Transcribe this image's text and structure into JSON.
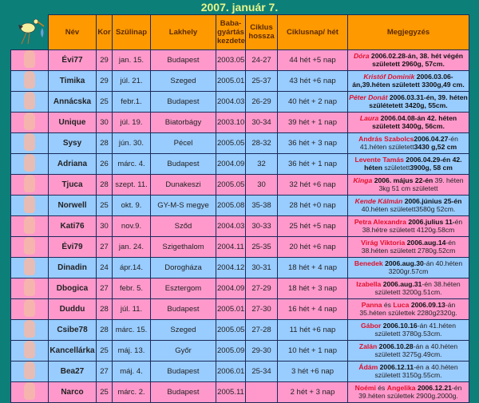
{
  "title": "2007. január 7.",
  "icons": {
    "corner": "stork-icon",
    "row": "baby-icon"
  },
  "colors": {
    "pink": "#ff99cc",
    "blue": "#99ccff",
    "header": "#ff9900",
    "background": "#0d7f79"
  },
  "headers": [
    "Név",
    "Kor",
    "Szülinap",
    "Lakhely",
    "Baba-gyártás kezdete",
    "Ciklus hossza",
    "Ciklusnap/ hét",
    "Megjegyzés"
  ],
  "rows": [
    {
      "color": "pink",
      "name": "Évi77",
      "age": "29",
      "birthday": "jan. 15.",
      "city": "Budapest",
      "start": "2003.05",
      "cycle": "24-27",
      "day": "44 hét +5 nap",
      "note": [
        {
          "t": "Dóra",
          "s": "nm it"
        },
        {
          "t": " 2006.02.28-án, 38. hét végén született 2960g, 57cm.",
          "s": "b"
        }
      ]
    },
    {
      "color": "blue",
      "name": "Timika",
      "age": "29",
      "birthday": "júl. 21.",
      "city": "Szeged",
      "start": "2005.01",
      "cycle": "25-37",
      "day": "43 hét +6 nap",
      "note": [
        {
          "t": "Kristóf Dominik",
          "s": "nm it"
        },
        {
          "t": " 2006.03.06-án,39.héten született 3300g,49 cm.",
          "s": "b"
        }
      ]
    },
    {
      "color": "blue",
      "name": "Annácska",
      "age": "25",
      "birthday": "febr.1.",
      "city": "Budapest",
      "start": "2004.03",
      "cycle": "26-29",
      "day": "40 hét + 2 nap",
      "note": [
        {
          "t": "Péter Donát",
          "s": "nm it"
        },
        {
          "t": " 2006.03.31-én, 39. héten szülétetett 3420g, 55cm.",
          "s": "b"
        }
      ]
    },
    {
      "color": "pink",
      "name": "Unique",
      "age": "30",
      "birthday": "júl. 19.",
      "city": "Biatorbágy",
      "start": "2003.10",
      "cycle": "30-34",
      "day": "39 hét + 1 nap",
      "note": [
        {
          "t": "Laura",
          "s": "nm it"
        },
        {
          "t": " 2006.04.08-án 42. héten született 3400g, 56cm.",
          "s": "b"
        }
      ]
    },
    {
      "color": "blue",
      "name": "Sysy",
      "age": "28",
      "birthday": "jún. 30.",
      "city": "Pécel",
      "start": "2005.05",
      "cycle": "28-32",
      "day": "36 hét + 3 nap",
      "note": [
        {
          "t": "András Szabolcs",
          "s": "nm"
        },
        {
          "t": "2006.04.27",
          "s": "b"
        },
        {
          "t": "-én 41.héten született",
          "s": ""
        },
        {
          "t": "3430 g,52 cm",
          "s": "b"
        }
      ]
    },
    {
      "color": "blue",
      "name": "Adriana",
      "age": "26",
      "birthday": "márc. 4.",
      "city": "Budapest",
      "start": "2004.09",
      "cycle": "32",
      "day": "36 hét + 1 nap",
      "note": [
        {
          "t": "Levente Tamás",
          "s": "nm"
        },
        {
          "t": " 2006.04.29-én 42. héten",
          "s": "b"
        },
        {
          "t": " született",
          "s": ""
        },
        {
          "t": "3900g, 58 cm",
          "s": "b"
        }
      ]
    },
    {
      "color": "pink",
      "name": "Tjuca",
      "age": "28",
      "birthday": "szept. 11.",
      "city": "Dunakeszi",
      "start": "2005.05",
      "cycle": "30",
      "day": "32 hét +6 nap",
      "note": [
        {
          "t": "Kinga",
          "s": "nm it"
        },
        {
          "t": " 2006. május 22-én",
          "s": "b"
        },
        {
          "t": " 39. héten 3kg 51 cm született",
          "s": ""
        }
      ]
    },
    {
      "color": "blue",
      "name": "Norwell",
      "age": "25",
      "birthday": "okt. 9.",
      "city": "GY-M-S megye",
      "start": "2005.08",
      "cycle": "35-38",
      "day": "28 hét +0 nap",
      "note": [
        {
          "t": "Kende Kálmán",
          "s": "nm it"
        },
        {
          "t": " 2006.június 25-én",
          "s": "b"
        },
        {
          "t": " 40.héten született3580g 52cm.",
          "s": ""
        }
      ]
    },
    {
      "color": "pink",
      "name": "Kati76",
      "age": "30",
      "birthday": "nov.9.",
      "city": "Sződ",
      "start": "2004.03",
      "cycle": "30-33",
      "day": "25 hét +5 nap",
      "note": [
        {
          "t": "Petra Alexandra",
          "s": "nm"
        },
        {
          "t": " 2006.julius 11-",
          "s": "b"
        },
        {
          "t": "én 38.hétre született 4120g.58cm",
          "s": ""
        }
      ]
    },
    {
      "color": "pink",
      "name": "Évi79",
      "age": "27",
      "birthday": "jan. 24.",
      "city": "Szigethalom",
      "start": "2004.11",
      "cycle": "25-35",
      "day": "20 hét +6 nap",
      "note": [
        {
          "t": "Virág Viktoria",
          "s": "nm"
        },
        {
          "t": " 2006.aug.14",
          "s": "b"
        },
        {
          "t": "-én 38.héten született 2780g.52cm",
          "s": ""
        }
      ]
    },
    {
      "color": "blue",
      "name": "Dinadin",
      "age": "24",
      "birthday": "ápr.14.",
      "city": "Dorogháza",
      "start": "2004.12",
      "cycle": "30-31",
      "day": "18 hét + 4 nap",
      "note": [
        {
          "t": "Benedek",
          "s": "nm"
        },
        {
          "t": " 2006.aug.30",
          "s": "b"
        },
        {
          "t": "-án 40.héten 3200gr.57cm",
          "s": ""
        }
      ]
    },
    {
      "color": "pink",
      "name": "Dbogica",
      "age": "27",
      "birthday": "febr. 5.",
      "city": "Esztergom",
      "start": "2004.09",
      "cycle": "27-29",
      "day": "18 hét + 3 nap",
      "note": [
        {
          "t": "Izabella",
          "s": "nm"
        },
        {
          "t": " 2006.aug.31",
          "s": "b"
        },
        {
          "t": "-én 38.héten született 3200g.51cm.",
          "s": ""
        }
      ]
    },
    {
      "color": "pink",
      "name": "Duddu",
      "age": "28",
      "birthday": "júl. 11.",
      "city": "Budapest",
      "start": "2005.01",
      "cycle": "27-30",
      "day": "16 hét + 4 nap",
      "note": [
        {
          "t": "Panna",
          "s": "nm"
        },
        {
          "t": " és ",
          "s": ""
        },
        {
          "t": "Luca",
          "s": "nm"
        },
        {
          "t": " 2006.09.13",
          "s": "b"
        },
        {
          "t": "-án 35.héten születtek 2280g2320g.",
          "s": ""
        }
      ]
    },
    {
      "color": "blue",
      "name": "Csibe78",
      "age": "28",
      "birthday": "márc. 15.",
      "city": "Szeged",
      "start": "2005.05",
      "cycle": "27-28",
      "day": "11 hét +6 nap",
      "note": [
        {
          "t": "Gábor",
          "s": "nm"
        },
        {
          "t": " 2006.10.16",
          "s": "b"
        },
        {
          "t": "-án 41.héten született 3780g.53cm.",
          "s": ""
        }
      ]
    },
    {
      "color": "blue",
      "name": "Kancellárka",
      "age": "25",
      "birthday": "máj. 13.",
      "city": "Győr",
      "start": "2005.09",
      "cycle": "29-30",
      "day": "10 hét + 1 nap",
      "note": [
        {
          "t": "Zalán",
          "s": "nm"
        },
        {
          "t": " 2006.10.28",
          "s": "b"
        },
        {
          "t": "-án a 40.héten született 3275g.49cm.",
          "s": ""
        }
      ]
    },
    {
      "color": "blue",
      "name": "Bea27",
      "age": "27",
      "birthday": "máj. 4.",
      "city": "Budapest",
      "start": "2006.01",
      "cycle": "25-34",
      "day": "3 hét +6 nap",
      "note": [
        {
          "t": "Ádám",
          "s": "nm"
        },
        {
          "t": " 2006.12.11",
          "s": "b"
        },
        {
          "t": "-én a 40.héten született 3150g.55cm.",
          "s": ""
        }
      ]
    },
    {
      "color": "pink",
      "name": "Narco",
      "age": "25",
      "birthday": "márc. 2.",
      "city": "Budapest",
      "start": "2005.11",
      "cycle": "",
      "day": "2 hét + 3 nap",
      "note": [
        {
          "t": "Noémi",
          "s": "nm"
        },
        {
          "t": " és ",
          "s": ""
        },
        {
          "t": "Angelika",
          "s": "nm"
        },
        {
          "t": " 2006.12.21",
          "s": "b"
        },
        {
          "t": "-én 39.héten születtek 2900g.2000g.",
          "s": ""
        }
      ]
    }
  ]
}
